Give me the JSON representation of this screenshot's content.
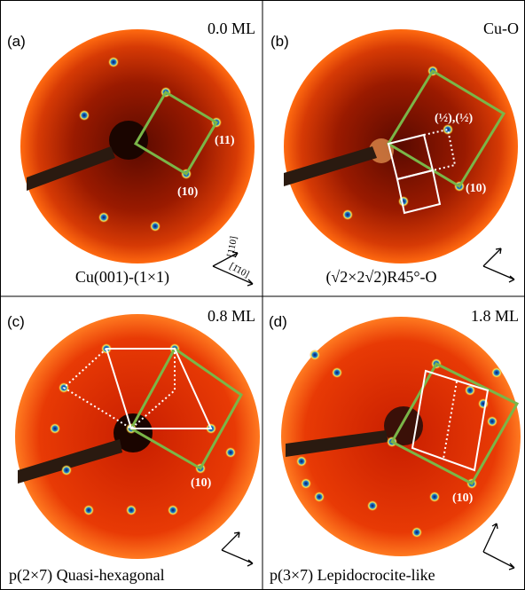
{
  "panels": [
    {
      "label": "(a)",
      "header": "0.0 ML",
      "caption": "Cu(001)-(1×1)",
      "annotations": [
        "(11)",
        "(10)"
      ],
      "directions": [
        "[110]",
        "[1̄10]"
      ]
    },
    {
      "label": "(b)",
      "header": "Cu-O",
      "caption": "(√2×2√2)R45°-O",
      "annotations": [
        "(½),(½)",
        "(10)"
      ]
    },
    {
      "label": "(c)",
      "header": "0.8 ML",
      "caption": "p(2×7) Quasi-hexagonal",
      "annotations": [
        "(10)"
      ]
    },
    {
      "label": "(d)",
      "header": "1.8 ML",
      "caption": "p(3×7) Lepidocrocite-like",
      "annotations": [
        "(10)"
      ]
    }
  ]
}
